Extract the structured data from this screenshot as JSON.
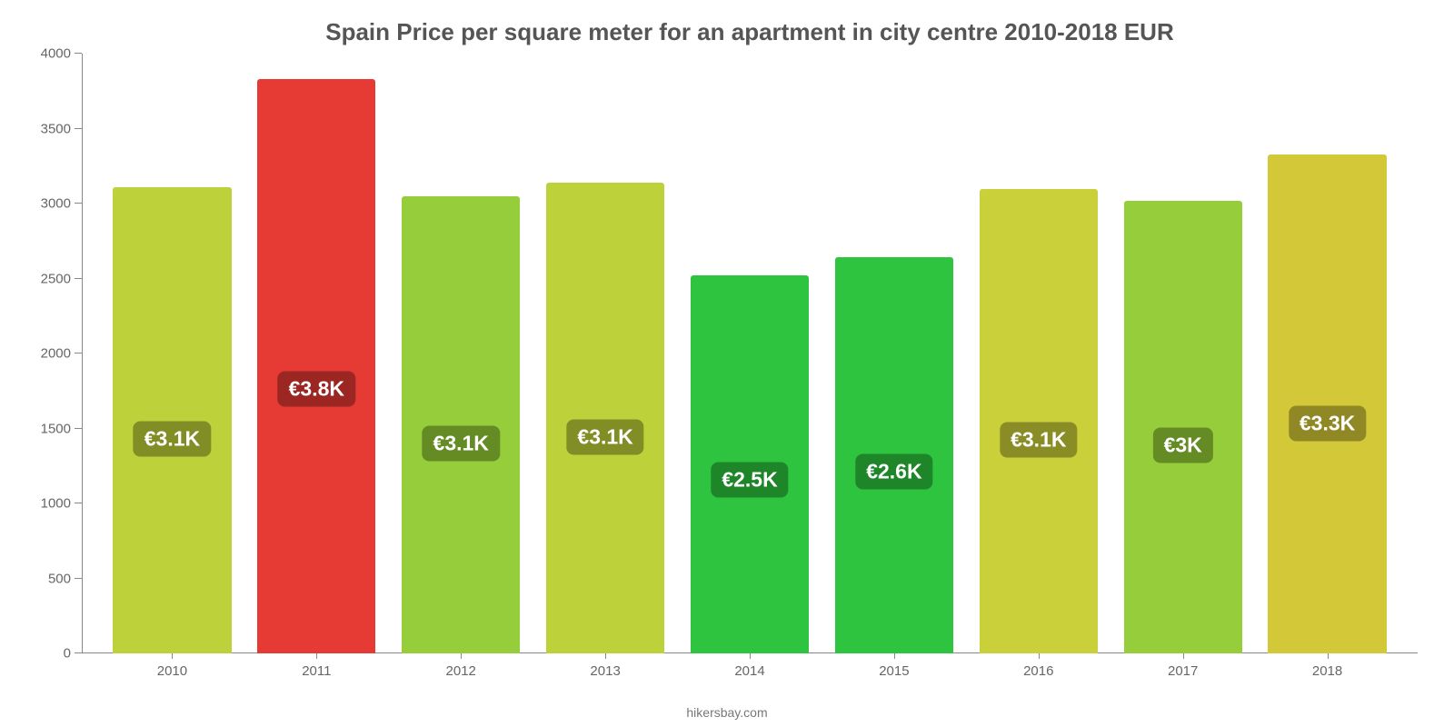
{
  "chart": {
    "type": "bar",
    "title": "Spain Price per square meter for an apartment in city centre 2010-2018 EUR",
    "title_fontsize": 26,
    "title_color": "#555555",
    "source": "hikersbay.com",
    "source_fontsize": 14,
    "source_color": "#777777",
    "background_color": "#ffffff",
    "ylim": [
      0,
      4000
    ],
    "ytick_step": 500,
    "yticks": [
      0,
      500,
      1000,
      1500,
      2000,
      2500,
      3000,
      3500,
      4000
    ],
    "axis_color": "#888888",
    "tick_label_color": "#666666",
    "tick_label_fontsize": 15,
    "bar_width_pct": 82,
    "value_label_fontsize": 23,
    "value_label_text_color": "#ffffff",
    "value_label_radius": 8,
    "categories": [
      "2010",
      "2011",
      "2012",
      "2013",
      "2014",
      "2015",
      "2016",
      "2017",
      "2018"
    ],
    "values": [
      3110,
      3830,
      3050,
      3140,
      2520,
      2640,
      3100,
      3020,
      3330
    ],
    "value_labels": [
      "€3.1K",
      "€3.8K",
      "€3.1K",
      "€3.1K",
      "€2.5K",
      "€2.6K",
      "€3.1K",
      "€3K",
      "€3.3K"
    ],
    "bar_colors": [
      "#bdd23a",
      "#e63a34",
      "#95cd3b",
      "#bdd23a",
      "#2fc440",
      "#2fc440",
      "#cad039",
      "#95cd3b",
      "#d2c838"
    ],
    "label_bg_colors": [
      "#808e25",
      "#9b2622",
      "#658b25",
      "#808e25",
      "#1e8529",
      "#1e8529",
      "#8a8d25",
      "#658b25",
      "#8f8824"
    ]
  }
}
